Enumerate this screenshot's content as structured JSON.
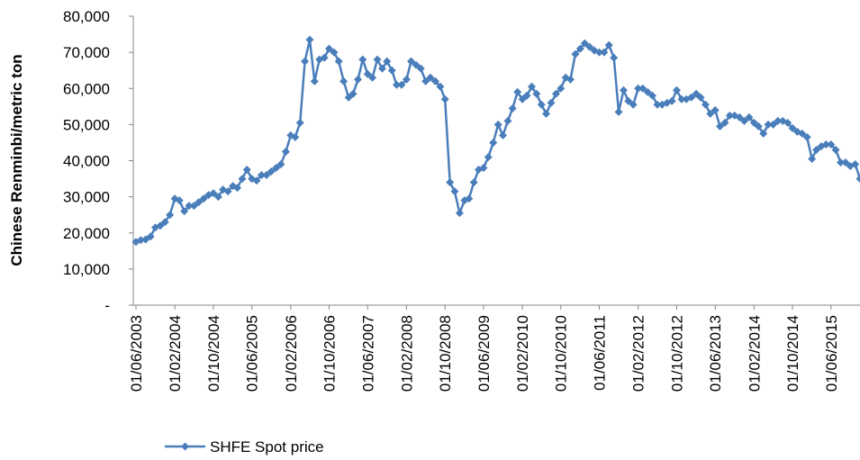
{
  "chart_data": {
    "type": "line",
    "y_label": "Chinese Renminbi/metric ton",
    "x": [
      "2003-06-01",
      "2003-07-01",
      "2003-08-01",
      "2003-09-01",
      "2003-10-01",
      "2003-11-01",
      "2003-12-01",
      "2004-01-01",
      "2004-02-01",
      "2004-03-01",
      "2004-04-01",
      "2004-05-01",
      "2004-06-01",
      "2004-07-01",
      "2004-08-01",
      "2004-09-01",
      "2004-10-01",
      "2004-11-01",
      "2004-12-01",
      "2005-01-01",
      "2005-02-01",
      "2005-03-01",
      "2005-04-01",
      "2005-05-01",
      "2005-06-01",
      "2005-07-01",
      "2005-08-01",
      "2005-09-01",
      "2005-10-01",
      "2005-11-01",
      "2005-12-01",
      "2006-01-01",
      "2006-02-01",
      "2006-03-01",
      "2006-04-01",
      "2006-05-01",
      "2006-06-01",
      "2006-07-01",
      "2006-08-01",
      "2006-09-01",
      "2006-10-01",
      "2006-11-01",
      "2006-12-01",
      "2007-01-01",
      "2007-02-01",
      "2007-03-01",
      "2007-04-01",
      "2007-05-01",
      "2007-06-01",
      "2007-07-01",
      "2007-08-01",
      "2007-09-01",
      "2007-10-01",
      "2007-11-01",
      "2007-12-01",
      "2008-01-01",
      "2008-02-01",
      "2008-03-01",
      "2008-04-01",
      "2008-05-01",
      "2008-06-01",
      "2008-07-01",
      "2008-08-01",
      "2008-09-01",
      "2008-10-01",
      "2008-11-01",
      "2008-12-01",
      "2009-01-01",
      "2009-02-01",
      "2009-03-01",
      "2009-04-01",
      "2009-05-01",
      "2009-06-01",
      "2009-07-01",
      "2009-08-01",
      "2009-09-01",
      "2009-10-01",
      "2009-11-01",
      "2009-12-01",
      "2010-01-01",
      "2010-02-01",
      "2010-03-01",
      "2010-04-01",
      "2010-05-01",
      "2010-06-01",
      "2010-07-01",
      "2010-08-01",
      "2010-09-01",
      "2010-10-01",
      "2010-11-01",
      "2010-12-01",
      "2011-01-01",
      "2011-02-01",
      "2011-03-01",
      "2011-04-01",
      "2011-05-01",
      "2011-06-01",
      "2011-07-01",
      "2011-08-01",
      "2011-09-01",
      "2011-10-01",
      "2011-11-01",
      "2011-12-01",
      "2012-01-01",
      "2012-02-01",
      "2012-03-01",
      "2012-04-01",
      "2012-05-01",
      "2012-06-01",
      "2012-07-01",
      "2012-08-01",
      "2012-09-01",
      "2012-10-01",
      "2012-11-01",
      "2012-12-01",
      "2013-01-01",
      "2013-02-01",
      "2013-03-01",
      "2013-04-01",
      "2013-05-01",
      "2013-06-01",
      "2013-07-01",
      "2013-08-01",
      "2013-09-01",
      "2013-10-01",
      "2013-11-01",
      "2013-12-01",
      "2014-01-01",
      "2014-02-01",
      "2014-03-01",
      "2014-04-01",
      "2014-05-01",
      "2014-06-01",
      "2014-07-01",
      "2014-08-01",
      "2014-09-01",
      "2014-10-01",
      "2014-11-01",
      "2014-12-01",
      "2015-01-01",
      "2015-02-01",
      "2015-03-01",
      "2015-04-01",
      "2015-05-01",
      "2015-06-01",
      "2015-07-01",
      "2015-08-01",
      "2015-09-01",
      "2015-10-01",
      "2015-11-01",
      "2015-12-01"
    ],
    "series": [
      {
        "name": "SHFE Spot price",
        "color": "#4a7ebb",
        "values": [
          17500,
          18000,
          18200,
          19000,
          21500,
          22000,
          23000,
          25000,
          29500,
          29000,
          26000,
          27500,
          27500,
          28500,
          29500,
          30500,
          31000,
          30000,
          32000,
          31500,
          33000,
          32500,
          35000,
          37500,
          35000,
          34500,
          36000,
          36000,
          37000,
          38000,
          39000,
          42500,
          47000,
          46500,
          50500,
          67500,
          73500,
          62000,
          68000,
          68500,
          71000,
          70000,
          67500,
          62000,
          57500,
          58500,
          62500,
          68000,
          64000,
          63000,
          68000,
          65500,
          67500,
          65000,
          61000,
          61000,
          62500,
          67500,
          66500,
          65500,
          62000,
          63000,
          62000,
          60500,
          57000,
          34000,
          31500,
          25500,
          29000,
          29500,
          34000,
          37500,
          38000,
          41000,
          45000,
          50000,
          47000,
          51000,
          54500,
          59000,
          57000,
          58000,
          60500,
          58500,
          55500,
          53000,
          56000,
          58500,
          60000,
          63000,
          62500,
          69500,
          71000,
          72500,
          71500,
          70500,
          70000,
          70000,
          72000,
          68500,
          53500,
          59500,
          56500,
          55500,
          60000,
          60000,
          59000,
          58000,
          55500,
          55500,
          56000,
          56500,
          59500,
          57000,
          57000,
          57500,
          58500,
          57500,
          55500,
          53000,
          54000,
          49500,
          50500,
          52500,
          52500,
          52000,
          51000,
          52000,
          50500,
          49500,
          47500,
          50000,
          50000,
          51000,
          51000,
          50500,
          49000,
          48000,
          47500,
          46500,
          40500,
          43000,
          44000,
          44500,
          44500,
          43000,
          39500,
          39500,
          38500,
          39000,
          35000
        ]
      }
    ],
    "xlim": [
      "2003-05-15",
      "2015-12-01"
    ],
    "xticks": [
      {
        "value": "2003-06-01",
        "label": "01/06/2003"
      },
      {
        "value": "2004-02-01",
        "label": "01/02/2004"
      },
      {
        "value": "2004-10-01",
        "label": "01/10/2004"
      },
      {
        "value": "2005-06-01",
        "label": "01/06/2005"
      },
      {
        "value": "2006-02-01",
        "label": "01/02/2006"
      },
      {
        "value": "2006-10-01",
        "label": "01/10/2006"
      },
      {
        "value": "2007-06-01",
        "label": "01/06/2007"
      },
      {
        "value": "2008-02-01",
        "label": "01/02/2008"
      },
      {
        "value": "2008-10-01",
        "label": "01/10/2008"
      },
      {
        "value": "2009-06-01",
        "label": "01/06/2009"
      },
      {
        "value": "2010-02-01",
        "label": "01/02/2010"
      },
      {
        "value": "2010-10-01",
        "label": "01/10/2010"
      },
      {
        "value": "2011-06-01",
        "label": "01/06/2011"
      },
      {
        "value": "2012-02-01",
        "label": "01/02/2012"
      },
      {
        "value": "2012-10-01",
        "label": "01/10/2012"
      },
      {
        "value": "2013-06-01",
        "label": "01/06/2013"
      },
      {
        "value": "2014-02-01",
        "label": "01/02/2014"
      },
      {
        "value": "2014-10-01",
        "label": "01/10/2014"
      },
      {
        "value": "2015-06-01",
        "label": "01/06/2015"
      }
    ],
    "ylim": [
      0,
      80000
    ],
    "yticks": [
      {
        "value": 0,
        "label": "-"
      },
      {
        "value": 10000,
        "label": "10,000"
      },
      {
        "value": 20000,
        "label": "20,000"
      },
      {
        "value": 30000,
        "label": "30,000"
      },
      {
        "value": 40000,
        "label": "40,000"
      },
      {
        "value": 50000,
        "label": "50,000"
      },
      {
        "value": 60000,
        "label": "60,000"
      },
      {
        "value": 70000,
        "label": "70,000"
      },
      {
        "value": 80000,
        "label": "80,000"
      }
    ],
    "grid": false,
    "legend": "bottom"
  }
}
